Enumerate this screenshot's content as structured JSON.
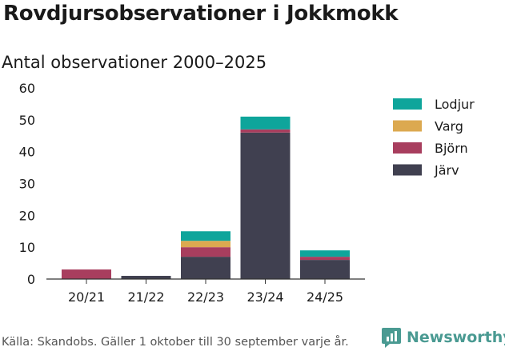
{
  "title": "Rovdjursobservationer i Jokkmokk",
  "subtitle": "Antal observationer 2000–2025",
  "footer": "Källa: Skandobs. Gäller 1 oktober till 30 september varje år.",
  "brand": {
    "name": "Newsworthy",
    "icon": "newsworthy-logo-icon"
  },
  "colors": {
    "Lodjur": "#0ea59b",
    "Varg": "#dca950",
    "Björn": "#a83e5e",
    "Järv": "#404050"
  },
  "chart_data": {
    "type": "bar",
    "stacked": true,
    "categories": [
      "20/21",
      "21/22",
      "22/23",
      "23/24",
      "24/25"
    ],
    "series": [
      {
        "name": "Järv",
        "values": [
          0,
          1,
          7,
          46,
          6
        ]
      },
      {
        "name": "Björn",
        "values": [
          3,
          0,
          3,
          1,
          1
        ]
      },
      {
        "name": "Varg",
        "values": [
          0,
          0,
          2,
          0,
          0
        ]
      },
      {
        "name": "Lodjur",
        "values": [
          0,
          0,
          3,
          4,
          2
        ]
      }
    ],
    "legend_order": [
      "Lodjur",
      "Varg",
      "Björn",
      "Järv"
    ],
    "ylim": [
      0,
      60
    ],
    "yticks": [
      0,
      10,
      20,
      30,
      40,
      50,
      60
    ],
    "grid": false,
    "legend": "right"
  }
}
